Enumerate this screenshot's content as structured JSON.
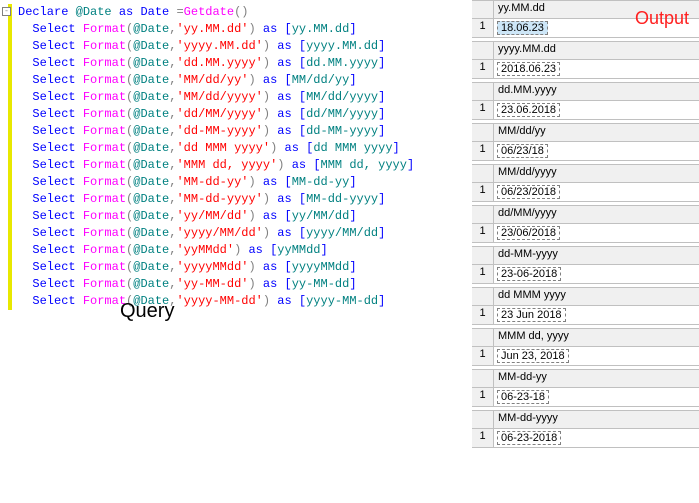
{
  "labels": {
    "query": "Query",
    "output": "Output"
  },
  "code": {
    "colors": {
      "keyword": "#0000ff",
      "function": "#ff00ff",
      "string": "#ff0000",
      "gray": "#808080",
      "bracket": "#0000ff",
      "identifier": "#008080"
    },
    "lines": [
      {
        "declare": true,
        "tokens": [
          {
            "c": "kw",
            "t": "Declare"
          },
          {
            "c": "",
            "t": " "
          },
          {
            "c": "var",
            "t": "@Date"
          },
          {
            "c": "",
            "t": " "
          },
          {
            "c": "kw",
            "t": "as"
          },
          {
            "c": "",
            "t": " "
          },
          {
            "c": "kw",
            "t": "Date"
          },
          {
            "c": "",
            "t": " "
          },
          {
            "c": "gray",
            "t": "="
          },
          {
            "c": "fn",
            "t": "Getdate"
          },
          {
            "c": "gray",
            "t": "()"
          }
        ]
      },
      {
        "fmt": "'yy.MM.dd'",
        "alias": "yy.MM.dd"
      },
      {
        "fmt": "'yyyy.MM.dd'",
        "alias": "yyyy.MM.dd"
      },
      {
        "fmt": "'dd.MM.yyyy'",
        "alias": "dd.MM.yyyy"
      },
      {
        "fmt": "'MM/dd/yy'",
        "alias": "MM/dd/yy"
      },
      {
        "fmt": "'MM/dd/yyyy'",
        "alias": "MM/dd/yyyy"
      },
      {
        "fmt": "'dd/MM/yyyy'",
        "alias": "dd/MM/yyyy"
      },
      {
        "fmt": "'dd-MM-yyyy'",
        "alias": "dd-MM-yyyy"
      },
      {
        "fmt": "'dd MMM yyyy'",
        "alias": "dd MMM yyyy"
      },
      {
        "fmt": "'MMM dd, yyyy'",
        "alias": "MMM dd, yyyy"
      },
      {
        "fmt": "'MM-dd-yy'",
        "alias": "MM-dd-yy"
      },
      {
        "fmt": "'MM-dd-yyyy'",
        "alias": "MM-dd-yyyy"
      },
      {
        "fmt": "'yy/MM/dd'",
        "alias": "yy/MM/dd"
      },
      {
        "fmt": "'yyyy/MM/dd'",
        "alias": "yyyy/MM/dd"
      },
      {
        "fmt": "'yyMMdd'",
        "alias": "yyMMdd"
      },
      {
        "fmt": "'yyyyMMdd'",
        "alias": "yyyyMMdd"
      },
      {
        "fmt": "'yy-MM-dd'",
        "alias": "yy-MM-dd"
      },
      {
        "fmt": "'yyyy-MM-dd'",
        "alias": "yyyy-MM-dd"
      }
    ]
  },
  "results": [
    {
      "header": "yy.MM.dd",
      "rownum": "1",
      "value": "18.06.23",
      "selected": true
    },
    {
      "header": "yyyy.MM.dd",
      "rownum": "1",
      "value": "2018.06.23"
    },
    {
      "header": "dd.MM.yyyy",
      "rownum": "1",
      "value": "23.06.2018"
    },
    {
      "header": "MM/dd/yy",
      "rownum": "1",
      "value": "06/23/18"
    },
    {
      "header": "MM/dd/yyyy",
      "rownum": "1",
      "value": "06/23/2018"
    },
    {
      "header": "dd/MM/yyyy",
      "rownum": "1",
      "value": "23/06/2018"
    },
    {
      "header": "dd-MM-yyyy",
      "rownum": "1",
      "value": "23-06-2018"
    },
    {
      "header": "dd MMM yyyy",
      "rownum": "1",
      "value": "23 Jun 2018"
    },
    {
      "header": "MMM dd, yyyy",
      "rownum": "1",
      "value": "Jun 23, 2018"
    },
    {
      "header": "MM-dd-yy",
      "rownum": "1",
      "value": "06-23-18"
    },
    {
      "header": "MM-dd-yyyy",
      "rownum": "1",
      "value": "06-23-2018"
    }
  ]
}
